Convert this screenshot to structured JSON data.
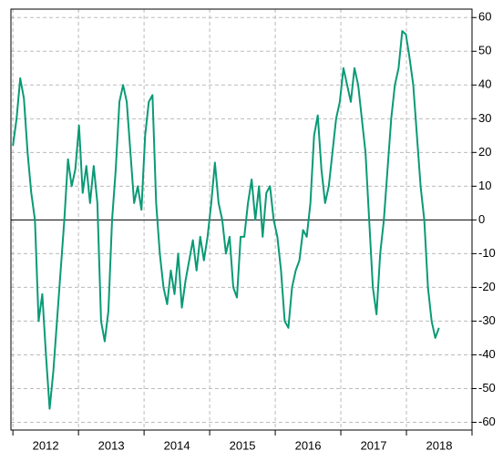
{
  "chart_data": {
    "type": "line",
    "x": [
      2012,
      2012.056,
      2012.112,
      2012.168,
      2012.224,
      2012.28,
      2012.336,
      2012.392,
      2012.448,
      2012.504,
      2012.56,
      2012.616,
      2012.672,
      2012.728,
      2012.784,
      2012.84,
      2012.896,
      2012.952,
      2013.008,
      2013.064,
      2013.12,
      2013.176,
      2013.232,
      2013.288,
      2013.344,
      2013.4,
      2013.456,
      2013.512,
      2013.568,
      2013.624,
      2013.68,
      2013.736,
      2013.792,
      2013.848,
      2013.904,
      2013.96,
      2014.016,
      2014.072,
      2014.128,
      2014.184,
      2014.24,
      2014.296,
      2014.352,
      2014.408,
      2014.464,
      2014.52,
      2014.576,
      2014.632,
      2014.688,
      2014.744,
      2014.8,
      2014.856,
      2014.912,
      2014.968,
      2015.024,
      2015.08,
      2015.136,
      2015.192,
      2015.248,
      2015.304,
      2015.36,
      2015.416,
      2015.472,
      2015.528,
      2015.584,
      2015.64,
      2015.696,
      2015.752,
      2015.808,
      2015.864,
      2015.92,
      2015.976,
      2016.032,
      2016.088,
      2016.144,
      2016.2,
      2016.256,
      2016.312,
      2016.368,
      2016.424,
      2016.48,
      2016.536,
      2016.592,
      2016.648,
      2016.704,
      2016.76,
      2016.816,
      2016.872,
      2016.928,
      2016.984,
      2017.04,
      2017.096,
      2017.152,
      2017.208,
      2017.264,
      2017.32,
      2017.376,
      2017.432,
      2017.488,
      2017.544,
      2017.6,
      2017.656,
      2017.712,
      2017.768,
      2017.824,
      2017.88,
      2017.936,
      2017.992,
      2018.048,
      2018.104,
      2018.16,
      2018.216,
      2018.272,
      2018.328,
      2018.384,
      2018.44,
      2018.496
    ],
    "series": [
      {
        "color": "#0a9a76",
        "values": [
          22,
          30,
          42,
          36,
          20,
          8,
          0,
          -30,
          -22,
          -40,
          -56,
          -45,
          -30,
          -15,
          0,
          18,
          10,
          15,
          28,
          8,
          16,
          5,
          16,
          5,
          -30,
          -36,
          -27,
          0,
          15,
          35,
          40,
          35,
          20,
          5,
          10,
          3,
          25,
          35,
          37,
          5,
          -10,
          -20,
          -25,
          -15,
          -22,
          -10,
          -26,
          -18,
          -12,
          -6,
          -15,
          -5,
          -12,
          -5,
          5,
          17,
          5,
          0,
          -10,
          -5,
          -20,
          -23,
          -5,
          -5,
          5,
          12,
          0,
          10,
          -5,
          8,
          10,
          0,
          -5,
          -15,
          -30,
          -32,
          -20,
          -15,
          -12,
          -3,
          -5,
          5,
          25,
          31,
          15,
          5,
          10,
          20,
          30,
          35,
          45,
          40,
          35,
          45,
          40,
          30,
          20,
          0,
          -20,
          -28,
          -10,
          0,
          15,
          30,
          40,
          45,
          56,
          55,
          48,
          40,
          25,
          10,
          0,
          -20,
          -30,
          -35,
          -32
        ]
      }
    ],
    "xlim": [
      2011.97,
      2019
    ],
    "xticks": [
      2012,
      2013,
      2014,
      2015,
      2016,
      2017,
      2018,
      2019
    ],
    "year_labels": [
      {
        "value": 2012.5,
        "label": "2012"
      },
      {
        "value": 2013.5,
        "label": "2013"
      },
      {
        "value": 2014.5,
        "label": "2014"
      },
      {
        "value": 2015.5,
        "label": "2015"
      },
      {
        "value": 2016.5,
        "label": "2016"
      },
      {
        "value": 2017.5,
        "label": "2017"
      },
      {
        "value": 2018.5,
        "label": "2018"
      }
    ],
    "ylim": [
      -62.3,
      62.5
    ],
    "yticks": [
      -60,
      -50,
      -40,
      -30,
      -20,
      -10,
      0,
      10,
      20,
      30,
      40,
      50,
      60
    ],
    "hline": 0,
    "grid": true,
    "y_axis_side": "right"
  }
}
